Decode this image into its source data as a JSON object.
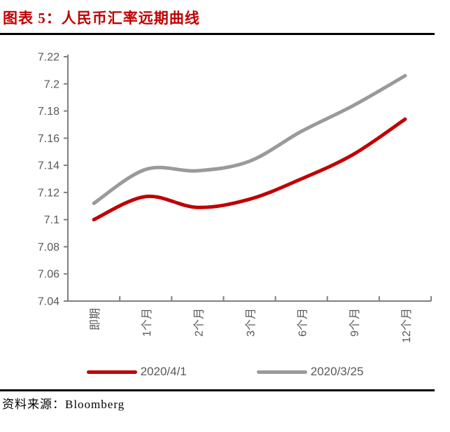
{
  "page": {
    "title": "图表 5：人民币汇率远期曲线",
    "source": "资料来源：Bloomberg"
  },
  "colors": {
    "title_red": "#c00000",
    "series_red": "#c00000",
    "series_gray": "#9a9a9a",
    "axis_line": "#808080",
    "axis_text": "#595959",
    "rule_black": "#000000"
  },
  "chart_data": {
    "type": "line",
    "smooth": true,
    "grid": false,
    "legend_position": "bottom",
    "title": "人民币汇率远期曲线",
    "xlabel": "",
    "ylabel": "",
    "categories": [
      "即期",
      "1个月",
      "2个月",
      "3个月",
      "6个月",
      "9个月",
      "12个月"
    ],
    "series": [
      {
        "name": "2020/4/1",
        "color": "#c00000",
        "values": [
          7.1,
          7.117,
          7.109,
          7.115,
          7.13,
          7.148,
          7.174
        ]
      },
      {
        "name": "2020/3/25",
        "color": "#9a9a9a",
        "values": [
          7.112,
          7.137,
          7.136,
          7.143,
          7.165,
          7.184,
          7.206
        ]
      }
    ],
    "ylim": [
      7.04,
      7.22
    ],
    "ytick_step": 0.02,
    "ytick_labels": [
      "7.04",
      "7.06",
      "7.08",
      "7.1",
      "7.12",
      "7.14",
      "7.16",
      "7.18",
      "7.2",
      "7.22"
    ]
  }
}
